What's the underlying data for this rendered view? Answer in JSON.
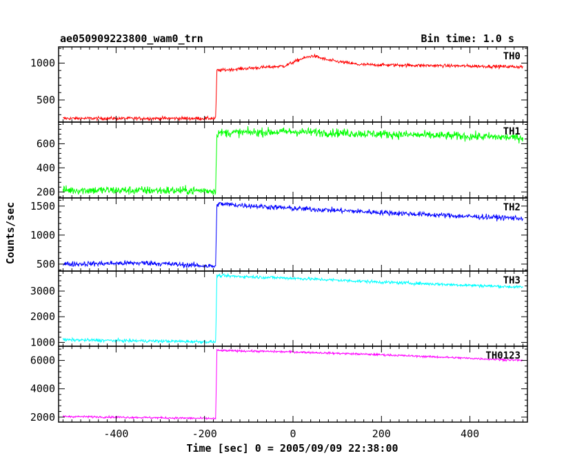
{
  "header": {
    "title": "ae050909223800_wam0_trn",
    "bin_time": "Bin time: 1.0 s"
  },
  "chart_data": {
    "type": "line",
    "xlabel": "Time [sec] 0 = 2005/09/09 22:38:00",
    "ylabel": "Counts/sec",
    "xlim": [
      -530,
      530
    ],
    "x_ticks": [
      -400,
      -200,
      0,
      200,
      400
    ],
    "trigger_time": -175,
    "time_range": [
      -520,
      520
    ],
    "panels": [
      {
        "name": "TH0",
        "color": "#ff0000",
        "ylim": [
          200,
          1220
        ],
        "y_ticks": [
          500,
          1000
        ],
        "noise": 22,
        "profile": [
          [
            -520,
            250
          ],
          [
            -175,
            250
          ],
          [
            -172,
            900
          ],
          [
            -100,
            930
          ],
          [
            -20,
            960
          ],
          [
            20,
            1060
          ],
          [
            45,
            1100
          ],
          [
            80,
            1040
          ],
          [
            150,
            980
          ],
          [
            520,
            950
          ]
        ]
      },
      {
        "name": "TH1",
        "color": "#00ff00",
        "ylim": [
          150,
          780
        ],
        "y_ticks": [
          200,
          400,
          600
        ],
        "noise": 35,
        "profile": [
          [
            -520,
            215
          ],
          [
            -175,
            210
          ],
          [
            -172,
            690
          ],
          [
            0,
            700
          ],
          [
            200,
            680
          ],
          [
            520,
            650
          ]
        ]
      },
      {
        "name": "TH2",
        "color": "#0000ff",
        "ylim": [
          380,
          1640
        ],
        "y_ticks": [
          500,
          1000,
          1500
        ],
        "noise": 45,
        "profile": [
          [
            -520,
            500
          ],
          [
            -330,
            520
          ],
          [
            -175,
            460
          ],
          [
            -172,
            1540
          ],
          [
            0,
            1460
          ],
          [
            200,
            1390
          ],
          [
            400,
            1320
          ],
          [
            520,
            1290
          ]
        ]
      },
      {
        "name": "TH3",
        "color": "#00ffff",
        "ylim": [
          850,
          3780
        ],
        "y_ticks": [
          1000,
          2000,
          3000
        ],
        "noise": 60,
        "profile": [
          [
            -520,
            1100
          ],
          [
            -175,
            1020
          ],
          [
            -172,
            3600
          ],
          [
            0,
            3500
          ],
          [
            200,
            3350
          ],
          [
            520,
            3150
          ]
        ]
      },
      {
        "name": "TH0123",
        "color": "#ff00ff",
        "ylim": [
          1650,
          7000
        ],
        "y_ticks": [
          2000,
          4000,
          6000
        ],
        "noise": 70,
        "profile": [
          [
            -520,
            2050
          ],
          [
            -175,
            1900
          ],
          [
            -172,
            6700
          ],
          [
            0,
            6600
          ],
          [
            200,
            6400
          ],
          [
            520,
            6000
          ]
        ]
      }
    ]
  }
}
